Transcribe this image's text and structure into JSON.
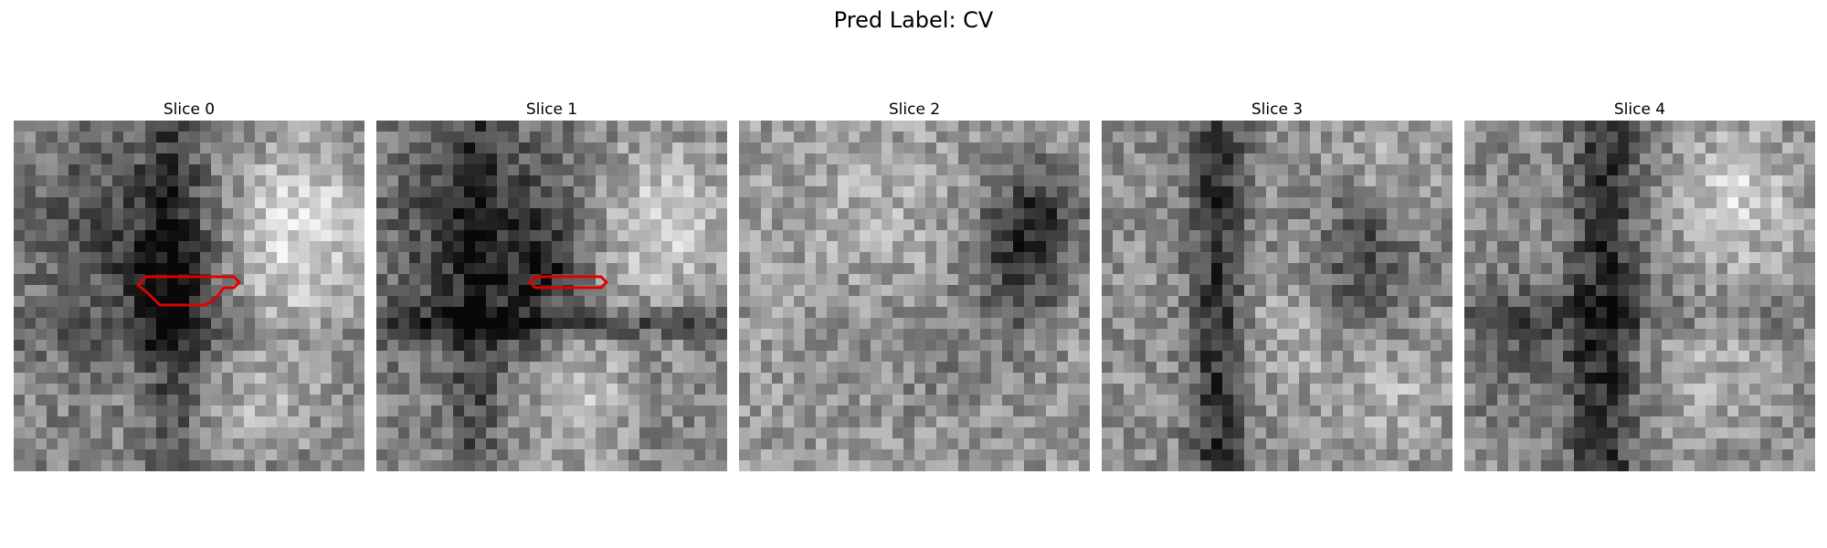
{
  "figure": {
    "title": "Pred Label: CV"
  },
  "panels": [
    {
      "title": "Slice 0",
      "contour": "drawn",
      "seed": 11
    },
    {
      "title": "Slice 1",
      "contour": "drawn",
      "seed": 23
    },
    {
      "title": "Slice 2",
      "contour": "none",
      "seed": 37
    },
    {
      "title": "Slice 3",
      "contour": "none",
      "seed": 51
    },
    {
      "title": "Slice 4",
      "contour": "none",
      "seed": 67
    }
  ],
  "colors": {
    "contour": "#e00000",
    "background": "#ffffff"
  },
  "image": {
    "colormap": "gray",
    "grid_cells": 32
  }
}
